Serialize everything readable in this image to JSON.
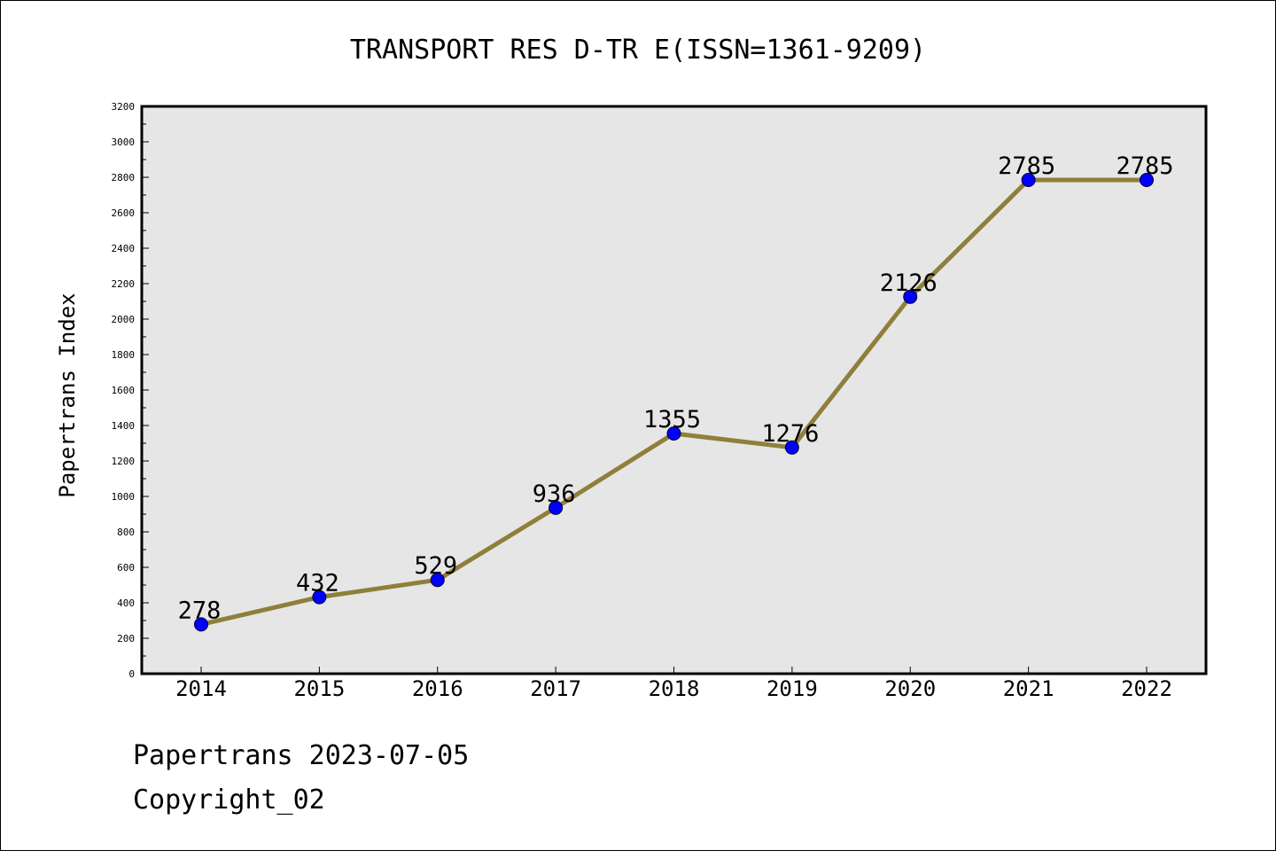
{
  "chart_data": {
    "type": "line",
    "title": "TRANSPORT RES D-TR E(ISSN=1361-9209)",
    "xlabel": "",
    "ylabel": "Papertrans Index",
    "categories": [
      "2014",
      "2015",
      "2016",
      "2017",
      "2018",
      "2019",
      "2020",
      "2021",
      "2022"
    ],
    "values": [
      278,
      432,
      529,
      936,
      1355,
      1276,
      2126,
      2785,
      2785
    ],
    "data_labels": [
      "278",
      "432",
      "529",
      "936",
      "1355",
      "1276",
      "2126",
      "2785",
      "2785"
    ],
    "ylim": [
      0,
      3200
    ],
    "y_ticks": [
      "0",
      "200",
      "400",
      "600",
      "800",
      "1000",
      "1200",
      "1400",
      "1600",
      "1800",
      "2000",
      "2200",
      "2400",
      "2600",
      "2800",
      "3000",
      "3200"
    ],
    "grid": false,
    "legend": "none",
    "colors": {
      "line": "#8f7f3a",
      "marker": "#0000ff",
      "plot_background": "#e6e6e6"
    }
  },
  "footer": {
    "date_line": "Papertrans 2023-07-05",
    "copyright_line": "Copyright_02"
  }
}
